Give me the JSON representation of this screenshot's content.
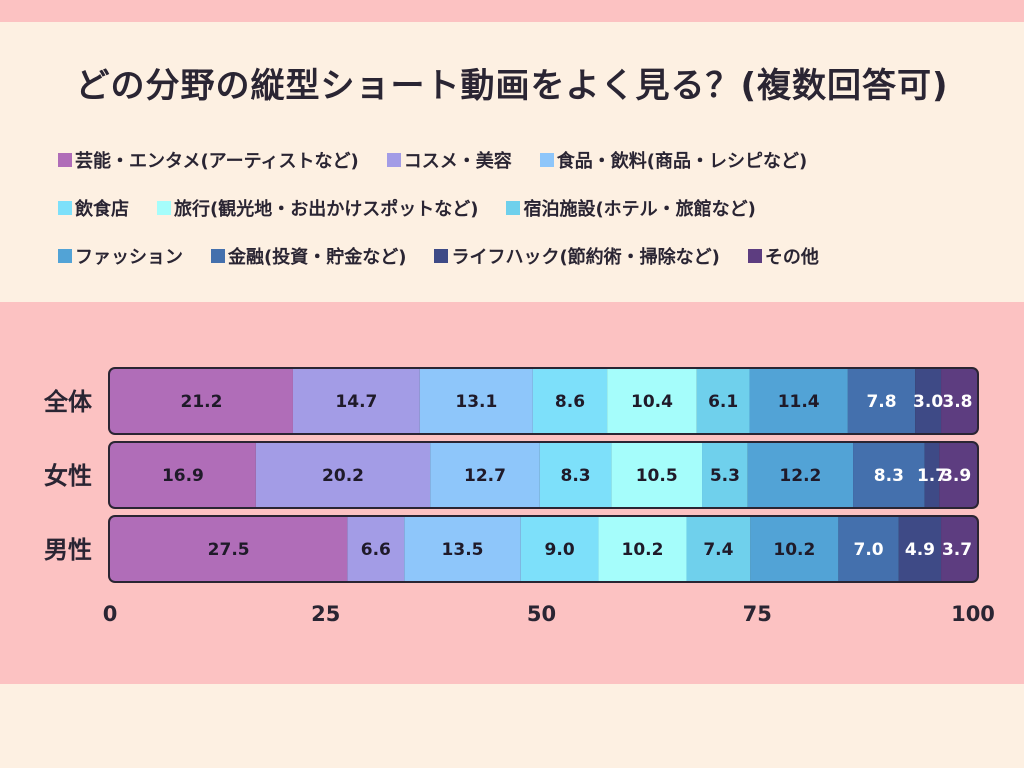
{
  "title": "どの分野の縦型ショート動画をよく見る？(複数回答可)",
  "legend_rows": [
    [
      0,
      1,
      2
    ],
    [
      3,
      4,
      5
    ],
    [
      6,
      7,
      8,
      9
    ]
  ],
  "chart_data": {
    "type": "bar",
    "orientation": "horizontal",
    "stacked": true,
    "title": "どの分野の縦型ショート動画をよく見る？(複数回答可)",
    "categories": [
      "全体",
      "女性",
      "男性"
    ],
    "xlim": [
      0,
      100
    ],
    "xticks": [
      0,
      25,
      50,
      75,
      100
    ],
    "legend_position": "top",
    "grid": false,
    "series": [
      {
        "name": "芸能・エンタメ(アーティストなど)",
        "color": "#b06db8",
        "label_color": "#1f1a29",
        "values": [
          21.2,
          16.9,
          27.5
        ]
      },
      {
        "name": "コスメ・美容",
        "color": "#a39ce6",
        "label_color": "#1f1a29",
        "values": [
          14.7,
          20.2,
          6.6
        ]
      },
      {
        "name": "食品・飲料(商品・レシピなど)",
        "color": "#8ec6fa",
        "label_color": "#1f1a29",
        "values": [
          13.1,
          12.7,
          13.5
        ]
      },
      {
        "name": "飲食店",
        "color": "#7de0fa",
        "label_color": "#1f1a29",
        "values": [
          8.6,
          8.3,
          9.0
        ]
      },
      {
        "name": "旅行(観光地・お出かけスポットなど)",
        "color": "#a5fdfb",
        "label_color": "#1f1a29",
        "values": [
          10.4,
          10.5,
          10.2
        ]
      },
      {
        "name": "宿泊施設(ホテル・旅館など)",
        "color": "#6fd0ec",
        "label_color": "#1f1a29",
        "values": [
          6.1,
          5.3,
          7.4
        ]
      },
      {
        "name": "ファッション",
        "color": "#52a3d6",
        "label_color": "#1f1a29",
        "values": [
          11.4,
          12.2,
          10.2
        ]
      },
      {
        "name": "金融(投資・貯金など)",
        "color": "#4470ad",
        "label_color": "#ffffff",
        "values": [
          7.8,
          8.3,
          7.0
        ]
      },
      {
        "name": "ライフハック(節約術・掃除など)",
        "color": "#3e4a86",
        "label_color": "#ffffff",
        "values": [
          3.0,
          1.7,
          4.9
        ]
      },
      {
        "name": "その他",
        "color": "#5d3d80",
        "label_color": "#ffffff",
        "values": [
          3.8,
          3.9,
          3.7
        ]
      }
    ]
  }
}
